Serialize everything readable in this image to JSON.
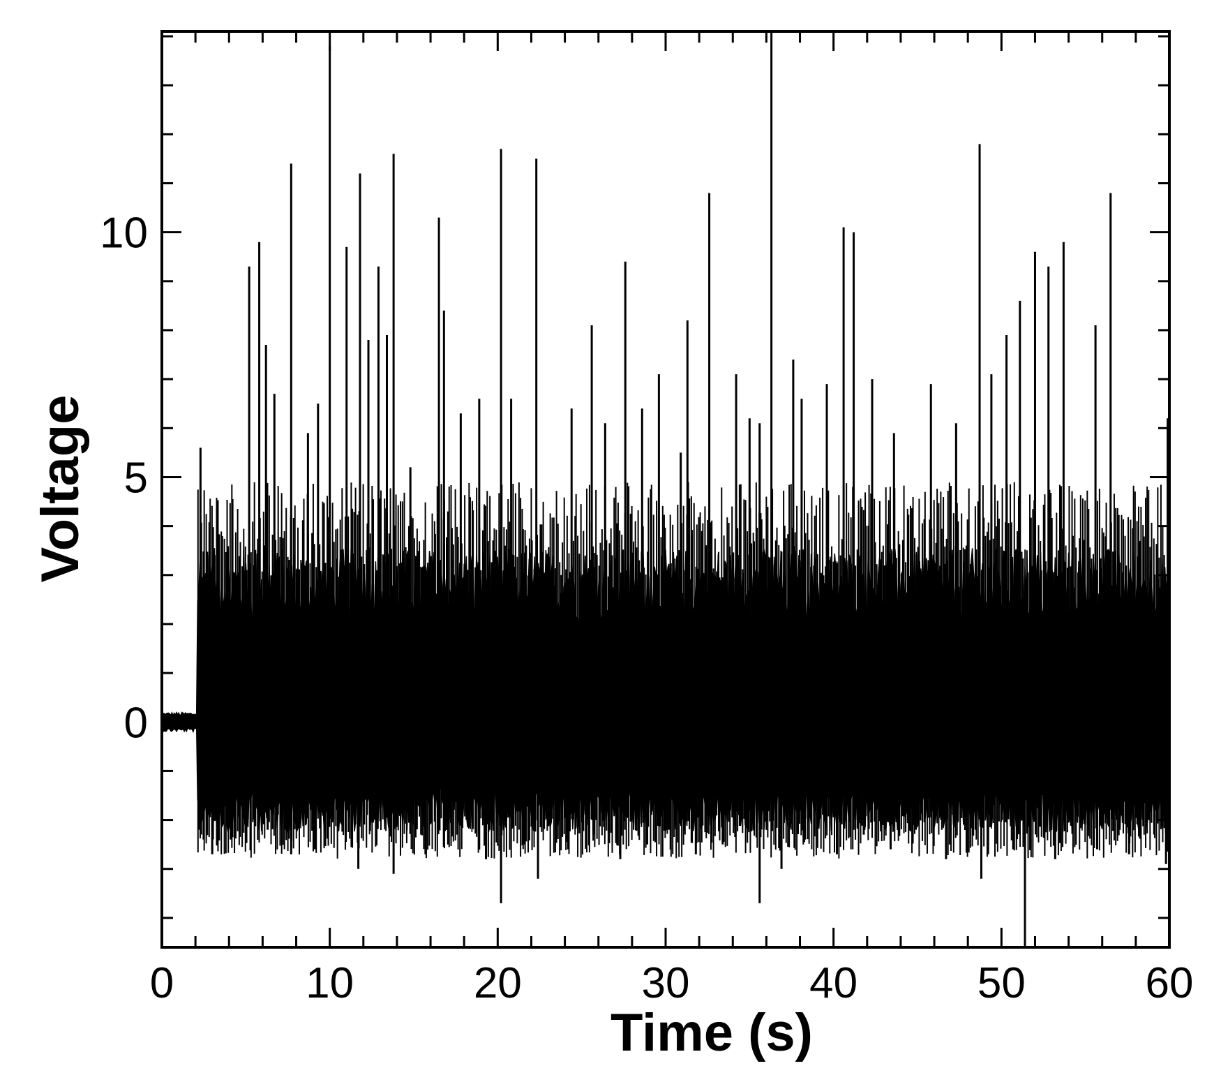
{
  "chart_data": {
    "type": "line",
    "title": "",
    "xlabel": "Time (s)",
    "ylabel": "Voltage",
    "xlim": [
      0,
      60
    ],
    "ylim": [
      -4.6,
      14.1
    ],
    "x_ticks": [
      0,
      10,
      20,
      30,
      40,
      50,
      60
    ],
    "x_tick_labels": [
      "0",
      "10",
      "20",
      "30",
      "40",
      "50",
      "60"
    ],
    "y_ticks": [
      0,
      5,
      10
    ],
    "y_tick_labels": [
      "0",
      "5",
      "10"
    ],
    "x_minor_step": 2,
    "y_minor_step": 1,
    "grid": false,
    "legend": "none",
    "signal_onset_s": 2.1,
    "baseline_noise_amplitude": 0.2,
    "dense_band": {
      "upper": 2.8,
      "lower": -1.8
    },
    "peaks_positive": [
      [
        2.3,
        5.6
      ],
      [
        5.2,
        9.3
      ],
      [
        5.8,
        9.8
      ],
      [
        6.2,
        7.7
      ],
      [
        6.7,
        6.7
      ],
      [
        7.7,
        11.4
      ],
      [
        8.7,
        5.9
      ],
      [
        9.3,
        6.5
      ],
      [
        10.0,
        13.8
      ],
      [
        11.0,
        9.7
      ],
      [
        11.8,
        11.2
      ],
      [
        12.3,
        7.8
      ],
      [
        12.9,
        9.3
      ],
      [
        13.4,
        7.9
      ],
      [
        13.8,
        11.6
      ],
      [
        14.8,
        5.2
      ],
      [
        16.5,
        10.3
      ],
      [
        16.8,
        8.4
      ],
      [
        17.8,
        6.3
      ],
      [
        18.9,
        6.6
      ],
      [
        20.2,
        11.7
      ],
      [
        20.8,
        6.6
      ],
      [
        22.3,
        11.5
      ],
      [
        24.4,
        6.4
      ],
      [
        25.6,
        8.1
      ],
      [
        26.4,
        6.1
      ],
      [
        27.6,
        9.4
      ],
      [
        28.6,
        6.4
      ],
      [
        29.6,
        7.1
      ],
      [
        30.9,
        5.5
      ],
      [
        31.3,
        8.2
      ],
      [
        32.6,
        10.8
      ],
      [
        34.2,
        7.1
      ],
      [
        35.0,
        6.2
      ],
      [
        35.6,
        6.1
      ],
      [
        36.3,
        14.1
      ],
      [
        37.6,
        7.4
      ],
      [
        38.1,
        6.6
      ],
      [
        39.6,
        6.9
      ],
      [
        40.6,
        10.1
      ],
      [
        41.2,
        10.0
      ],
      [
        42.3,
        7.0
      ],
      [
        43.6,
        5.9
      ],
      [
        45.8,
        6.9
      ],
      [
        47.3,
        6.1
      ],
      [
        48.7,
        11.8
      ],
      [
        49.4,
        7.1
      ],
      [
        50.3,
        7.9
      ],
      [
        51.1,
        8.6
      ],
      [
        52.0,
        9.6
      ],
      [
        52.8,
        9.3
      ],
      [
        53.7,
        9.8
      ],
      [
        55.6,
        8.1
      ],
      [
        56.5,
        10.8
      ],
      [
        59.9,
        6.2
      ]
    ],
    "peaks_negative": [
      [
        2.2,
        -2.2
      ],
      [
        3.0,
        -2.7
      ],
      [
        4.1,
        -2.4
      ],
      [
        6.3,
        -2.2
      ],
      [
        7.7,
        -2.7
      ],
      [
        9.1,
        -2.6
      ],
      [
        11.7,
        -3.0
      ],
      [
        13.8,
        -3.1
      ],
      [
        15.7,
        -2.7
      ],
      [
        17.6,
        -2.3
      ],
      [
        19.3,
        -2.8
      ],
      [
        20.2,
        -3.7
      ],
      [
        21.6,
        -2.5
      ],
      [
        22.4,
        -3.2
      ],
      [
        24.2,
        -2.6
      ],
      [
        25.7,
        -2.3
      ],
      [
        27.3,
        -2.8
      ],
      [
        28.9,
        -2.5
      ],
      [
        30.2,
        -2.2
      ],
      [
        31.8,
        -2.7
      ],
      [
        33.4,
        -2.5
      ],
      [
        34.9,
        -2.2
      ],
      [
        35.6,
        -3.7
      ],
      [
        36.9,
        -3.0
      ],
      [
        38.3,
        -2.4
      ],
      [
        40.2,
        -2.7
      ],
      [
        41.8,
        -2.3
      ],
      [
        43.4,
        -2.6
      ],
      [
        44.9,
        -2.2
      ],
      [
        46.7,
        -2.8
      ],
      [
        48.8,
        -3.2
      ],
      [
        50.7,
        -2.6
      ],
      [
        51.4,
        -4.6
      ],
      [
        53.2,
        -2.8
      ],
      [
        55.7,
        -2.6
      ],
      [
        57.6,
        -2.7
      ],
      [
        59.8,
        -2.9
      ]
    ]
  }
}
